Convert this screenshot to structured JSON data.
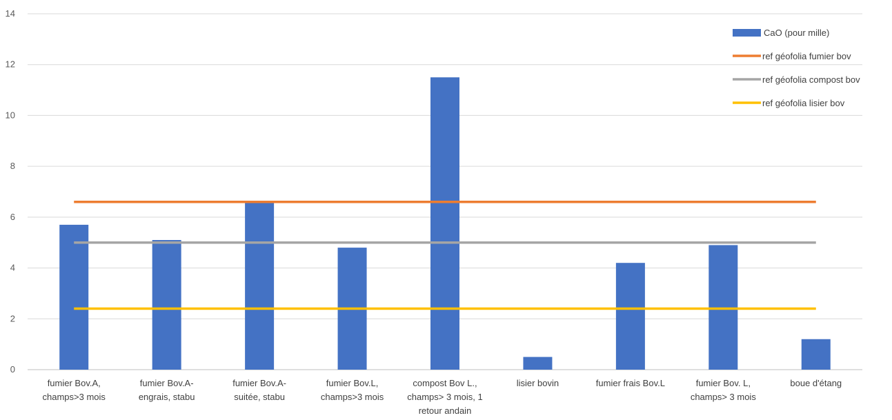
{
  "chart_data": {
    "type": "bar",
    "title": "",
    "xlabel": "",
    "ylabel": "",
    "ylim": [
      0,
      14
    ],
    "yticks": [
      0,
      2,
      4,
      6,
      8,
      10,
      12,
      14
    ],
    "grid": true,
    "legend_position": "top-right",
    "categories": [
      [
        "fumier Bov.A,",
        "champs>3 mois"
      ],
      [
        "fumier Bov.A-",
        "engrais, stabu"
      ],
      [
        "fumier Bov.A-",
        "suitée, stabu"
      ],
      [
        "fumier Bov.L,",
        "champs>3 mois"
      ],
      [
        "compost Bov L.,",
        "champs> 3 mois, 1",
        "retour andain"
      ],
      [
        "lisier bovin"
      ],
      [
        "fumier frais Bov.L"
      ],
      [
        "fumier Bov. L,",
        "champs> 3 mois"
      ],
      [
        "boue d'étang"
      ]
    ],
    "series": [
      {
        "name": "CaO (pour mille)",
        "kind": "bar",
        "color": "#4472C4",
        "values": [
          5.7,
          5.1,
          6.6,
          4.8,
          11.5,
          0.5,
          4.2,
          4.9,
          1.2
        ]
      },
      {
        "name": "ref géofolia fumier bov",
        "kind": "line",
        "color": "#ED7D31",
        "value": 6.6
      },
      {
        "name": "ref géofolia compost bov",
        "kind": "line",
        "color": "#A5A5A5",
        "value": 5.0
      },
      {
        "name": "ref géofolia lisier bov",
        "kind": "line",
        "color": "#FFC000",
        "value": 2.4
      }
    ]
  }
}
